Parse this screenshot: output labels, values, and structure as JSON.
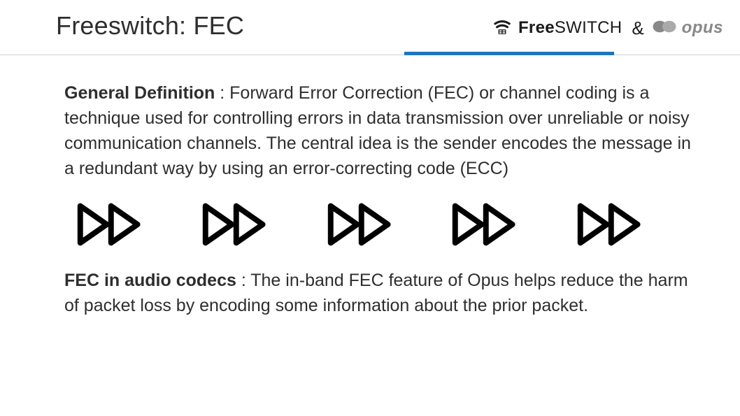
{
  "header": {
    "title": "Freeswitch: FEC",
    "ampersand": "&",
    "freeswitch": {
      "prefix": "Free",
      "suffix": "SWITCH"
    },
    "opus": {
      "text": "opus"
    },
    "accent_color": "#1c75bc"
  },
  "content": {
    "def_lead": "General Definition",
    "def_body": " : Forward Error Correction (FEC) or channel coding is a technique used for controlling errors in data transmission over unreliable or noisy communication channels. The central idea is the sender encodes the message in a redundant way by using an error-correcting code (ECC)",
    "codec_lead": "FEC in audio codecs",
    "codec_body": " : The in-band FEC feature of Opus helps reduce the harm of packet loss by encoding some information about the prior packet."
  },
  "icons": {
    "count": 5,
    "stroke": "#000000",
    "stroke_width": 9,
    "size": 88
  },
  "typography": {
    "title_fontsize": 36,
    "body_fontsize": 25,
    "line_height": 1.44
  },
  "colors": {
    "text": "#2e2e2e",
    "border": "#d0d0d0",
    "background": "#ffffff",
    "opus_gray": "#888888"
  }
}
